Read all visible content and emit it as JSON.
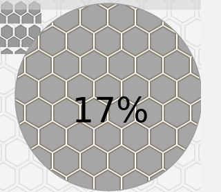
{
  "progress": {
    "label": "17%"
  }
}
